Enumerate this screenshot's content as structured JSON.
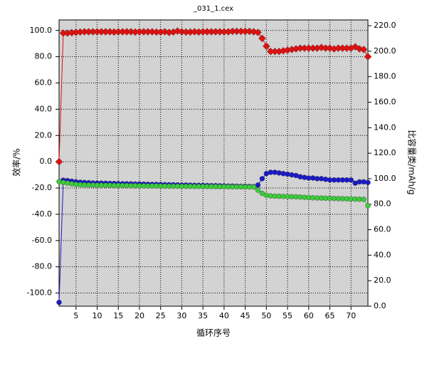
{
  "chart_data": {
    "type": "line",
    "title": "_031_1.cex",
    "x_label": "循环序号",
    "y_label": "效率/%",
    "y2_label": "比容量类/mAh/g",
    "x": [
      1,
      2,
      3,
      4,
      5,
      6,
      7,
      8,
      9,
      10,
      11,
      12,
      13,
      14,
      15,
      16,
      17,
      18,
      19,
      20,
      21,
      22,
      23,
      24,
      25,
      26,
      27,
      28,
      29,
      30,
      31,
      32,
      33,
      34,
      35,
      36,
      37,
      38,
      39,
      40,
      41,
      42,
      43,
      44,
      45,
      46,
      47,
      48,
      49,
      50,
      51,
      52,
      53,
      54,
      55,
      56,
      57,
      58,
      59,
      60,
      61,
      62,
      63,
      64,
      65,
      66,
      67,
      68,
      69,
      70,
      71,
      72,
      73,
      74
    ],
    "xlim": [
      1,
      74
    ],
    "xticks": [
      5,
      10,
      15,
      20,
      25,
      30,
      35,
      40,
      45,
      50,
      55,
      60,
      65,
      70
    ],
    "ylim": [
      -110,
      108
    ],
    "yticks": [
      {
        "value": -100,
        "label": "-100.0"
      },
      {
        "value": -80,
        "label": "-80.0"
      },
      {
        "value": -60,
        "label": "-60.0"
      },
      {
        "value": -40,
        "label": "-40.0"
      },
      {
        "value": -20,
        "label": "-20.0"
      },
      {
        "value": 0,
        "label": "0.0"
      },
      {
        "value": 20,
        "label": "20.0"
      },
      {
        "value": 40,
        "label": "40.0"
      },
      {
        "value": 60,
        "label": "60.0"
      },
      {
        "value": 80,
        "label": "80.0"
      },
      {
        "value": 100,
        "label": "100.0"
      }
    ],
    "y2lim": [
      0,
      224.5
    ],
    "y2ticks": [
      {
        "value": 0,
        "label": "0.0"
      },
      {
        "value": 20,
        "label": "20.0"
      },
      {
        "value": 40,
        "label": "40.0"
      },
      {
        "value": 60,
        "label": "60.0"
      },
      {
        "value": 80,
        "label": "80.0"
      },
      {
        "value": 100,
        "label": "100.0"
      },
      {
        "value": 120,
        "label": "120.0"
      },
      {
        "value": 140,
        "label": "140.0"
      },
      {
        "value": 160,
        "label": "160.0"
      },
      {
        "value": 180,
        "label": "180.0"
      },
      {
        "value": 200,
        "label": "200.0"
      },
      {
        "value": 220,
        "label": "220.0"
      }
    ],
    "grid": true,
    "series": [
      {
        "color": "#e01010",
        "marker": "diamond",
        "axis": "y",
        "values": [
          0,
          98,
          98,
          98.3,
          98.5,
          98.8,
          99,
          99,
          99,
          99,
          99,
          99,
          99,
          98.8,
          99,
          99,
          99,
          99,
          98.8,
          99,
          99,
          99,
          99,
          98.8,
          98.8,
          99,
          98.5,
          98.8,
          99.5,
          99,
          98.8,
          98.8,
          99,
          98.8,
          99,
          99,
          99,
          99,
          99,
          99,
          99,
          99.3,
          99.3,
          99.3,
          99.3,
          99.3,
          99,
          98.5,
          94,
          88,
          84,
          84,
          84,
          84.5,
          85,
          85.5,
          86,
          86.5,
          86.5,
          86.5,
          86.5,
          86.5,
          87,
          86.5,
          86.5,
          86,
          86.5,
          86.5,
          86.5,
          86.5,
          87.5,
          86,
          85.5,
          80
        ]
      },
      {
        "color": "#1a1ac8",
        "marker": "circle",
        "axis": "y2",
        "values": [
          3,
          98.8,
          98.5,
          98,
          97.5,
          97.2,
          97,
          96.8,
          96.6,
          96.5,
          96.5,
          96.4,
          96.3,
          96.2,
          96.1,
          96,
          96,
          95.9,
          95.8,
          95.8,
          95.7,
          95.6,
          95.5,
          95.5,
          95.4,
          95.3,
          95.2,
          95.2,
          95.1,
          95,
          95,
          94.9,
          94.8,
          94.8,
          94.7,
          94.6,
          94.5,
          94.5,
          94.4,
          94.3,
          94.2,
          94.2,
          94.1,
          94,
          94,
          93.9,
          93.8,
          95,
          100,
          104,
          105,
          105,
          104.5,
          104,
          103.5,
          103,
          102.5,
          101.5,
          101,
          100.5,
          100.5,
          100,
          100,
          99.5,
          99,
          99,
          99,
          99,
          99,
          99,
          96.5,
          97.5,
          97.5,
          97
        ]
      },
      {
        "color": "#3ccc3c",
        "marker": "circle",
        "axis": "y2",
        "values": [
          97.7,
          97,
          96.5,
          96,
          95.5,
          95.3,
          95.1,
          95,
          95,
          94.9,
          94.9,
          94.8,
          94.8,
          94.7,
          94.7,
          94.6,
          94.6,
          94.5,
          94.5,
          94.4,
          94.4,
          94.3,
          94.3,
          94.3,
          94.2,
          94.2,
          94.1,
          94.1,
          94.1,
          94,
          94,
          94,
          93.9,
          93.9,
          93.9,
          93.8,
          93.8,
          93.8,
          93.7,
          93.7,
          93.7,
          93.6,
          93.6,
          93.6,
          93.5,
          93.5,
          93.5,
          91,
          88.5,
          87,
          86.5,
          86.3,
          86.2,
          86.1,
          86,
          85.9,
          85.8,
          85.6,
          85.4,
          85.2,
          85,
          84.9,
          84.8,
          84.7,
          84.6,
          84.5,
          84.4,
          84.3,
          84.2,
          84.1,
          84,
          83.9,
          83.8,
          78.8
        ]
      }
    ]
  }
}
